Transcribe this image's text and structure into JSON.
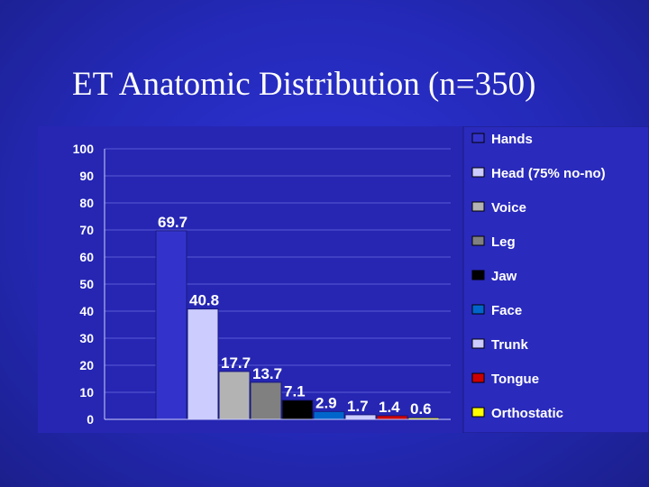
{
  "slide": {
    "title": "ET Anatomic Distribution (n=350)"
  },
  "chart_data": {
    "type": "bar",
    "title": "",
    "xlabel": "",
    "ylabel": "",
    "ylim": [
      0,
      100
    ],
    "yticks": [
      0,
      10,
      20,
      30,
      40,
      50,
      60,
      70,
      80,
      90,
      100
    ],
    "grid": true,
    "legend_position": "right",
    "categories": [
      "Hands",
      "Head (75% no-no)",
      "Voice",
      "Leg",
      "Jaw",
      "Face",
      "Trunk",
      "Tongue",
      "Orthostatic"
    ],
    "values": [
      69.7,
      40.8,
      17.7,
      13.7,
      7.1,
      2.9,
      1.7,
      1.4,
      0.6
    ],
    "data_labels": [
      "69.7",
      "40.8",
      "17.7",
      "13.7",
      "7.1",
      "2.9",
      "1.7",
      "1.4",
      "0.6"
    ],
    "colors": [
      "#3333cc",
      "#ccccff",
      "#b3b3b3",
      "#808080",
      "#000000",
      "#0066cc",
      "#ccccff",
      "#cc0000",
      "#ffff00"
    ]
  }
}
